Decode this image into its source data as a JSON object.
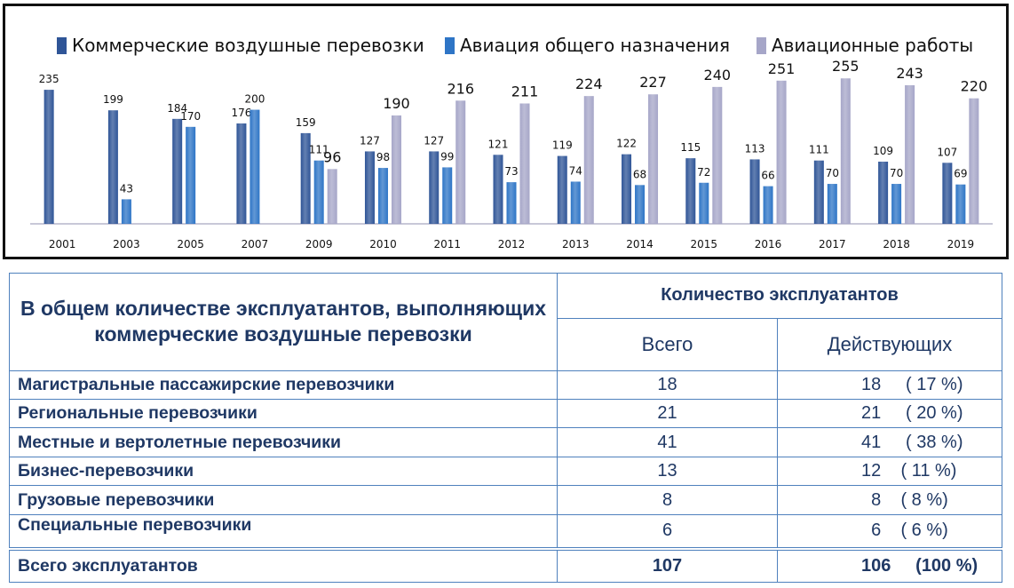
{
  "chart_data": {
    "type": "bar",
    "categories": [
      "2001",
      "2003",
      "2005",
      "2007",
      "2009",
      "2010",
      "2011",
      "2012",
      "2013",
      "2014",
      "2015",
      "2016",
      "2017",
      "2018",
      "2019"
    ],
    "series": [
      {
        "name": "Коммерческие воздушные перевозки",
        "values": [
          235,
          199,
          184,
          176,
          159,
          127,
          127,
          121,
          119,
          122,
          115,
          113,
          111,
          109,
          107
        ],
        "color": "#2f5597"
      },
      {
        "name": "Авиация общего назначения",
        "values": [
          null,
          43,
          170,
          200,
          111,
          98,
          99,
          73,
          74,
          68,
          72,
          66,
          70,
          70,
          69
        ],
        "color": "#2e75c6"
      },
      {
        "name": "Авиационные работы",
        "values": [
          null,
          null,
          null,
          null,
          96,
          190,
          216,
          211,
          224,
          227,
          240,
          251,
          255,
          243,
          220
        ],
        "color": "#a6a6c8"
      }
    ],
    "ylim": [
      0,
      270
    ],
    "legend_position": "top",
    "grid": false
  },
  "table": {
    "header_left": "В общем количестве эксплуатантов, выполняющих коммерческие воздушные перевозки",
    "header_top": "Количество эксплуатантов",
    "header_total": "Всего",
    "header_active": "Действующих",
    "rows": [
      {
        "label": "Магистральные пассажирские перевозчики",
        "total": "18",
        "active": "18     ( 17 %)"
      },
      {
        "label": "Региональные перевозчики",
        "total": "21",
        "active": "21     ( 20 %)"
      },
      {
        "label": "Местные и вертолетные перевозчики",
        "total": "41",
        "active": "41     ( 38 %)"
      },
      {
        "label": "Бизнес-перевозчики",
        "total": "13",
        "active": "12    ( 11 %)"
      },
      {
        "label": "Грузовые перевозчики",
        "total": "8",
        "active": "  8    ( 8 %)"
      },
      {
        "label": "Специальные перевозчики",
        "total": "6",
        "active": "  6    ( 6 %)"
      }
    ],
    "total_row": {
      "label": "Всего эксплуатантов",
      "total": "107",
      "active": "106     (100 %)"
    }
  }
}
